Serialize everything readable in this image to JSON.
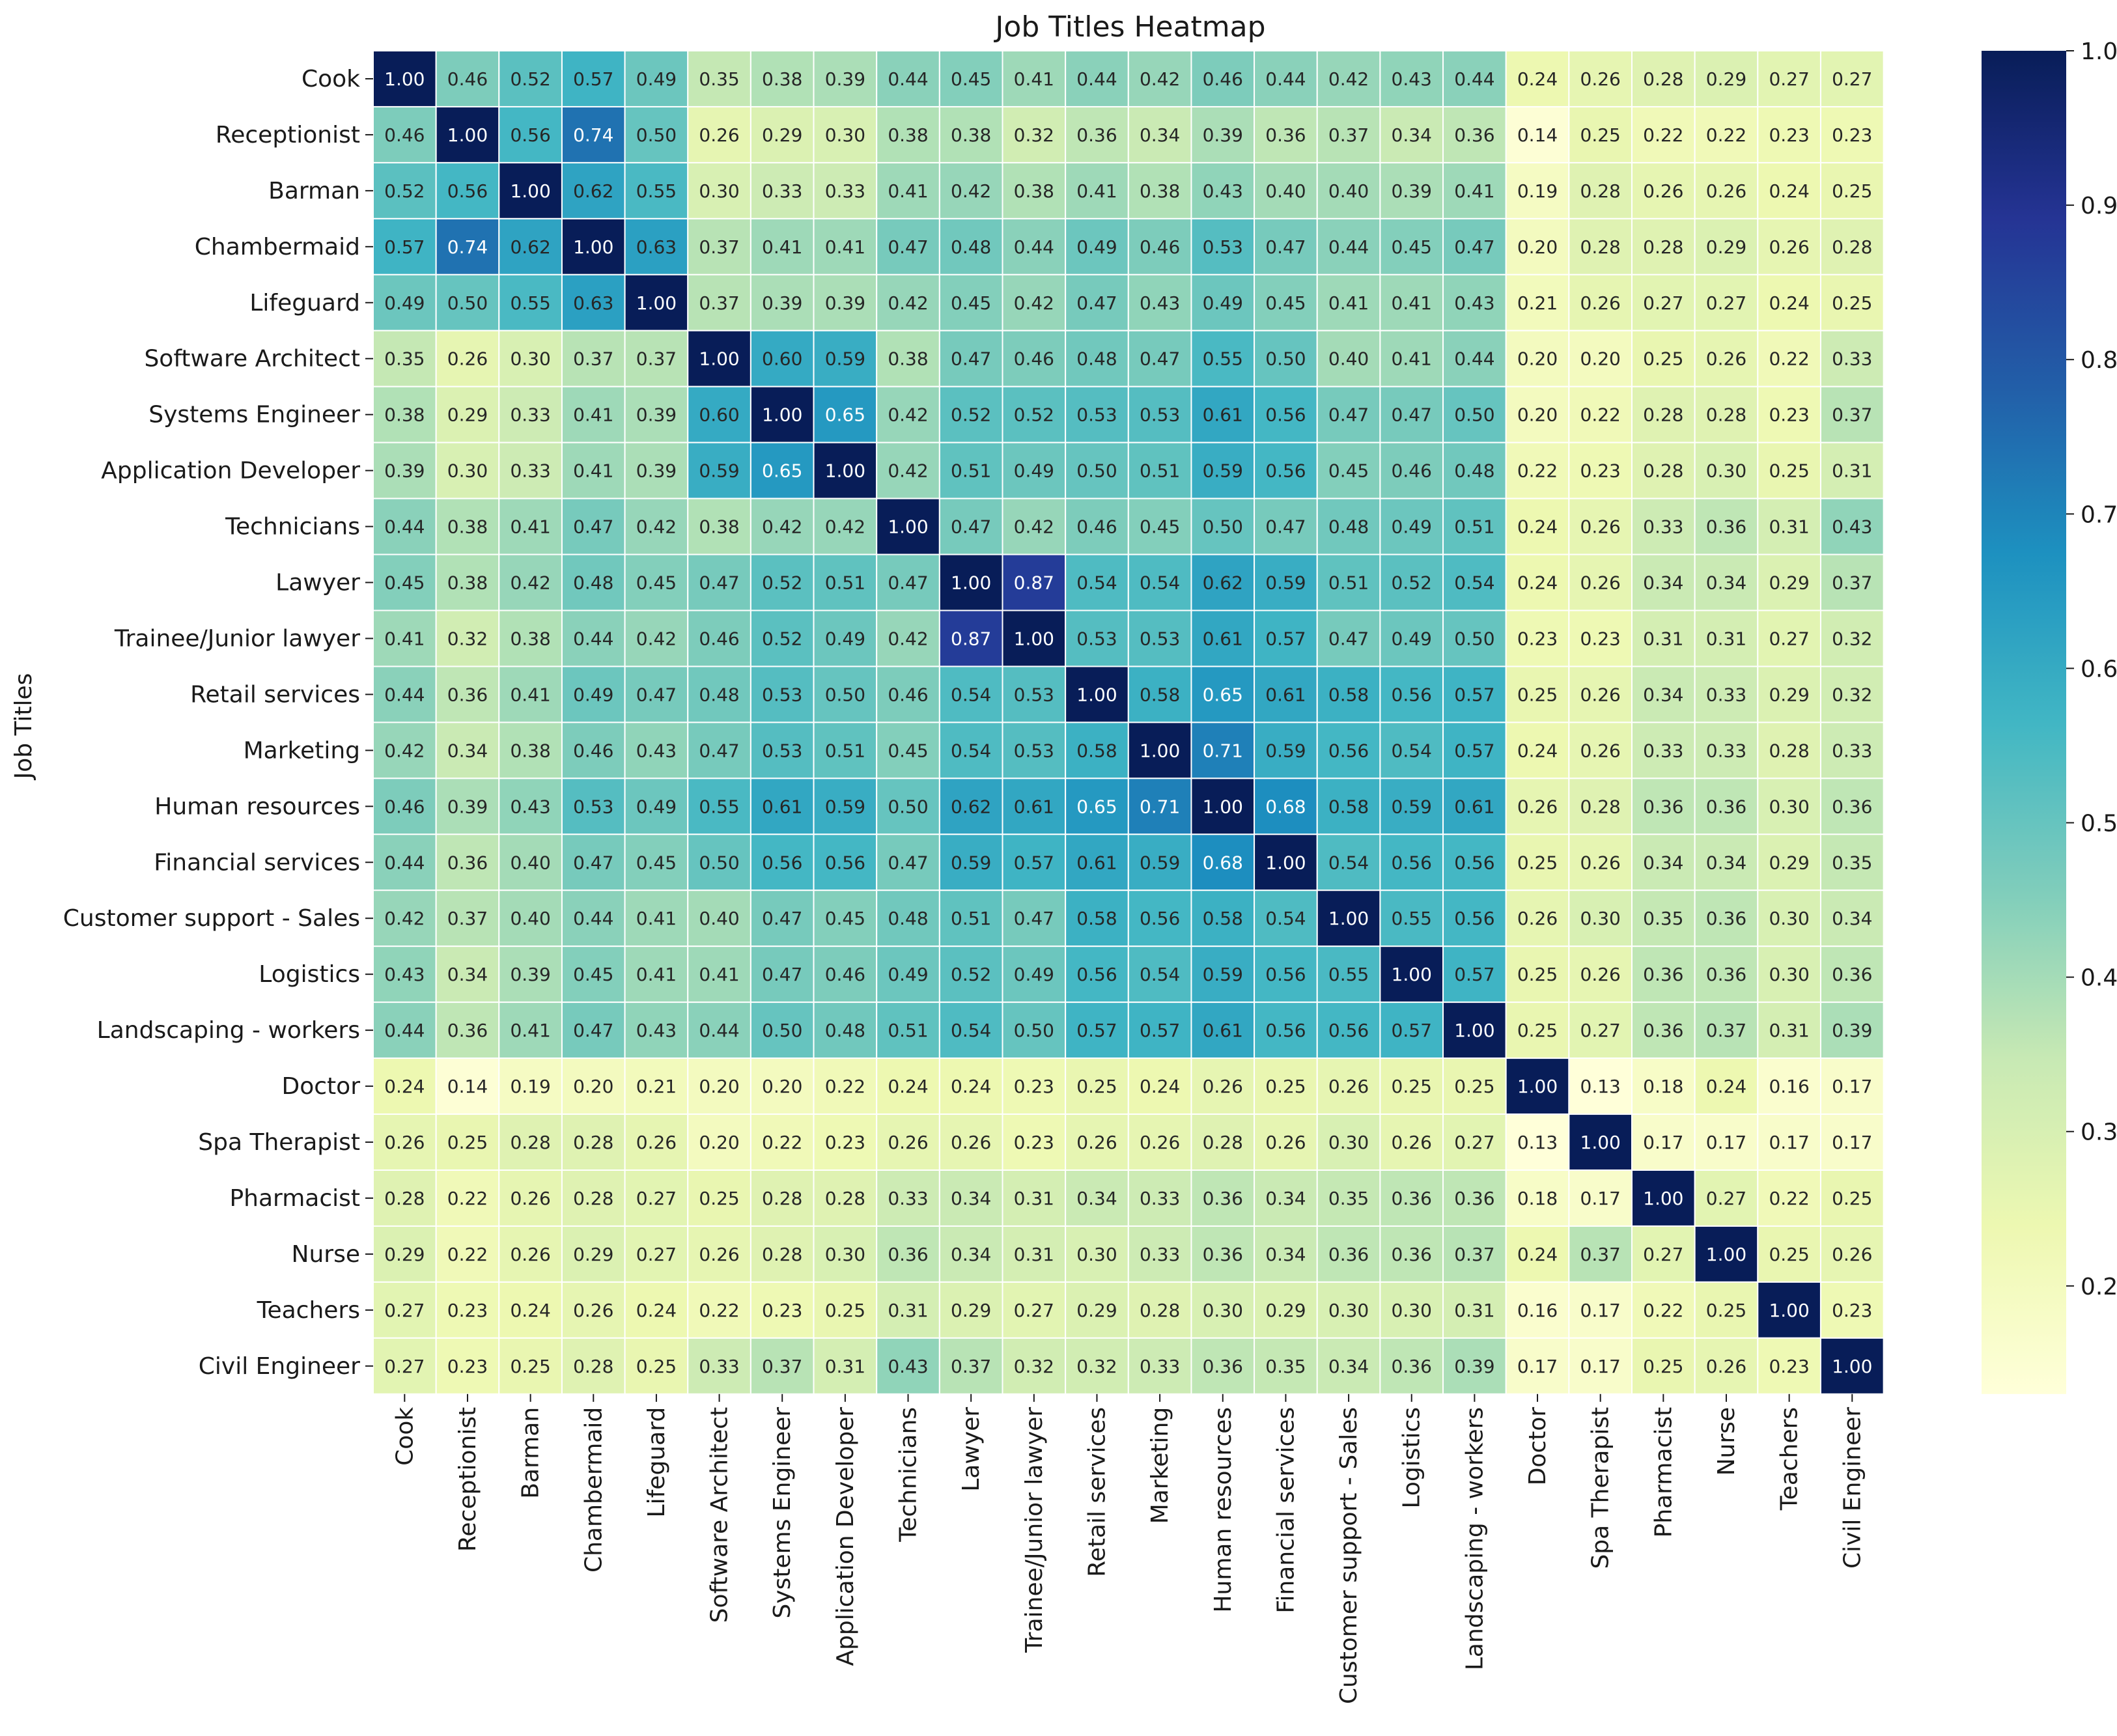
{
  "chart_data": {
    "type": "heatmap",
    "title": "Job Titles Heatmap",
    "xlabel": "",
    "ylabel": "Job Titles",
    "colormap": "YlGnBu",
    "color_range": [
      0.13,
      1.0
    ],
    "colorbar_ticks": [
      "0.2",
      "0.3",
      "0.4",
      "0.5",
      "0.6",
      "0.7",
      "0.8",
      "0.9",
      "1.0"
    ],
    "colorbar_tick_values": [
      0.2,
      0.3,
      0.4,
      0.5,
      0.6,
      0.7,
      0.8,
      0.9,
      1.0
    ],
    "labels": [
      "Cook",
      "Receptionist",
      "Barman",
      "Chambermaid",
      "Lifeguard",
      "Software Architect",
      "Systems Engineer",
      "Application Developer",
      "Technicians",
      "Lawyer",
      "Trainee/Junior lawyer",
      "Retail services",
      "Marketing",
      "Human resources",
      "Financial services",
      "Customer support - Sales",
      "Logistics",
      "Landscaping - workers",
      "Doctor",
      "Spa Therapist",
      "Pharmacist",
      "Nurse",
      "Teachers",
      "Civil Engineer"
    ],
    "values": [
      [
        1.0,
        0.46,
        0.52,
        0.57,
        0.49,
        0.35,
        0.38,
        0.39,
        0.44,
        0.45,
        0.41,
        0.44,
        0.42,
        0.46,
        0.44,
        0.42,
        0.43,
        0.44,
        0.24,
        0.26,
        0.28,
        0.29,
        0.27,
        0.27
      ],
      [
        0.46,
        1.0,
        0.56,
        0.74,
        0.5,
        0.26,
        0.29,
        0.3,
        0.38,
        0.38,
        0.32,
        0.36,
        0.34,
        0.39,
        0.36,
        0.37,
        0.34,
        0.36,
        0.14,
        0.25,
        0.22,
        0.22,
        0.23,
        0.23
      ],
      [
        0.52,
        0.56,
        1.0,
        0.62,
        0.55,
        0.3,
        0.33,
        0.33,
        0.41,
        0.42,
        0.38,
        0.41,
        0.38,
        0.43,
        0.4,
        0.4,
        0.39,
        0.41,
        0.19,
        0.28,
        0.26,
        0.26,
        0.24,
        0.25
      ],
      [
        0.57,
        0.74,
        0.62,
        1.0,
        0.63,
        0.37,
        0.41,
        0.41,
        0.47,
        0.48,
        0.44,
        0.49,
        0.46,
        0.53,
        0.47,
        0.44,
        0.45,
        0.47,
        0.2,
        0.28,
        0.28,
        0.29,
        0.26,
        0.28
      ],
      [
        0.49,
        0.5,
        0.55,
        0.63,
        1.0,
        0.37,
        0.39,
        0.39,
        0.42,
        0.45,
        0.42,
        0.47,
        0.43,
        0.49,
        0.45,
        0.41,
        0.41,
        0.43,
        0.21,
        0.26,
        0.27,
        0.27,
        0.24,
        0.25
      ],
      [
        0.35,
        0.26,
        0.3,
        0.37,
        0.37,
        1.0,
        0.6,
        0.59,
        0.38,
        0.47,
        0.46,
        0.48,
        0.47,
        0.55,
        0.5,
        0.4,
        0.41,
        0.44,
        0.2,
        0.2,
        0.25,
        0.26,
        0.22,
        0.33
      ],
      [
        0.38,
        0.29,
        0.33,
        0.41,
        0.39,
        0.6,
        1.0,
        0.65,
        0.42,
        0.52,
        0.52,
        0.53,
        0.53,
        0.61,
        0.56,
        0.47,
        0.47,
        0.5,
        0.2,
        0.22,
        0.28,
        0.28,
        0.23,
        0.37
      ],
      [
        0.39,
        0.3,
        0.33,
        0.41,
        0.39,
        0.59,
        0.65,
        1.0,
        0.42,
        0.51,
        0.49,
        0.5,
        0.51,
        0.59,
        0.56,
        0.45,
        0.46,
        0.48,
        0.22,
        0.23,
        0.28,
        0.3,
        0.25,
        0.31
      ],
      [
        0.44,
        0.38,
        0.41,
        0.47,
        0.42,
        0.38,
        0.42,
        0.42,
        1.0,
        0.47,
        0.42,
        0.46,
        0.45,
        0.5,
        0.47,
        0.48,
        0.49,
        0.51,
        0.24,
        0.26,
        0.33,
        0.36,
        0.31,
        0.43
      ],
      [
        0.45,
        0.38,
        0.42,
        0.48,
        0.45,
        0.47,
        0.52,
        0.51,
        0.47,
        1.0,
        0.87,
        0.54,
        0.54,
        0.62,
        0.59,
        0.51,
        0.52,
        0.54,
        0.24,
        0.26,
        0.34,
        0.34,
        0.29,
        0.37
      ],
      [
        0.41,
        0.32,
        0.38,
        0.44,
        0.42,
        0.46,
        0.52,
        0.49,
        0.42,
        0.87,
        1.0,
        0.53,
        0.53,
        0.61,
        0.57,
        0.47,
        0.49,
        0.5,
        0.23,
        0.23,
        0.31,
        0.31,
        0.27,
        0.32
      ],
      [
        0.44,
        0.36,
        0.41,
        0.49,
        0.47,
        0.48,
        0.53,
        0.5,
        0.46,
        0.54,
        0.53,
        1.0,
        0.58,
        0.65,
        0.61,
        0.58,
        0.56,
        0.57,
        0.25,
        0.26,
        0.34,
        0.33,
        0.29,
        0.32
      ],
      [
        0.42,
        0.34,
        0.38,
        0.46,
        0.43,
        0.47,
        0.53,
        0.51,
        0.45,
        0.54,
        0.53,
        0.58,
        1.0,
        0.71,
        0.59,
        0.56,
        0.54,
        0.57,
        0.24,
        0.26,
        0.33,
        0.33,
        0.28,
        0.33
      ],
      [
        0.46,
        0.39,
        0.43,
        0.53,
        0.49,
        0.55,
        0.61,
        0.59,
        0.5,
        0.62,
        0.61,
        0.65,
        0.71,
        1.0,
        0.68,
        0.58,
        0.59,
        0.61,
        0.26,
        0.28,
        0.36,
        0.36,
        0.3,
        0.36
      ],
      [
        0.44,
        0.36,
        0.4,
        0.47,
        0.45,
        0.5,
        0.56,
        0.56,
        0.47,
        0.59,
        0.57,
        0.61,
        0.59,
        0.68,
        1.0,
        0.54,
        0.56,
        0.56,
        0.25,
        0.26,
        0.34,
        0.34,
        0.29,
        0.35
      ],
      [
        0.42,
        0.37,
        0.4,
        0.44,
        0.41,
        0.4,
        0.47,
        0.45,
        0.48,
        0.51,
        0.47,
        0.58,
        0.56,
        0.58,
        0.54,
        1.0,
        0.55,
        0.56,
        0.26,
        0.3,
        0.35,
        0.36,
        0.3,
        0.34
      ],
      [
        0.43,
        0.34,
        0.39,
        0.45,
        0.41,
        0.41,
        0.47,
        0.46,
        0.49,
        0.52,
        0.49,
        0.56,
        0.54,
        0.59,
        0.56,
        0.55,
        1.0,
        0.57,
        0.25,
        0.26,
        0.36,
        0.36,
        0.3,
        0.36
      ],
      [
        0.44,
        0.36,
        0.41,
        0.47,
        0.43,
        0.44,
        0.5,
        0.48,
        0.51,
        0.54,
        0.5,
        0.57,
        0.57,
        0.61,
        0.56,
        0.56,
        0.57,
        1.0,
        0.25,
        0.27,
        0.36,
        0.37,
        0.31,
        0.39
      ],
      [
        0.24,
        0.14,
        0.19,
        0.2,
        0.21,
        0.2,
        0.2,
        0.22,
        0.24,
        0.24,
        0.23,
        0.25,
        0.24,
        0.26,
        0.25,
        0.26,
        0.25,
        0.25,
        1.0,
        0.13,
        0.18,
        0.24,
        0.16,
        0.17
      ],
      [
        0.26,
        0.25,
        0.28,
        0.28,
        0.26,
        0.2,
        0.22,
        0.23,
        0.26,
        0.26,
        0.23,
        0.26,
        0.26,
        0.28,
        0.26,
        0.3,
        0.26,
        0.27,
        0.13,
        1.0,
        0.17,
        0.17,
        0.17,
        0.17
      ],
      [
        0.28,
        0.22,
        0.26,
        0.28,
        0.27,
        0.25,
        0.28,
        0.28,
        0.33,
        0.34,
        0.31,
        0.34,
        0.33,
        0.36,
        0.34,
        0.35,
        0.36,
        0.36,
        0.18,
        0.17,
        1.0,
        0.27,
        0.22,
        0.25
      ],
      [
        0.29,
        0.22,
        0.26,
        0.29,
        0.27,
        0.26,
        0.28,
        0.3,
        0.36,
        0.34,
        0.31,
        0.3,
        0.33,
        0.36,
        0.34,
        0.36,
        0.36,
        0.37,
        0.24,
        0.37,
        0.27,
        1.0,
        0.25,
        0.26
      ],
      [
        0.27,
        0.23,
        0.24,
        0.26,
        0.24,
        0.22,
        0.23,
        0.25,
        0.31,
        0.29,
        0.27,
        0.29,
        0.28,
        0.3,
        0.29,
        0.3,
        0.3,
        0.31,
        0.16,
        0.17,
        0.22,
        0.25,
        1.0,
        0.23
      ],
      [
        0.27,
        0.23,
        0.25,
        0.28,
        0.25,
        0.33,
        0.37,
        0.31,
        0.43,
        0.37,
        0.32,
        0.32,
        0.33,
        0.36,
        0.35,
        0.34,
        0.36,
        0.39,
        0.17,
        0.17,
        0.25,
        0.26,
        0.23,
        1.0
      ]
    ]
  }
}
